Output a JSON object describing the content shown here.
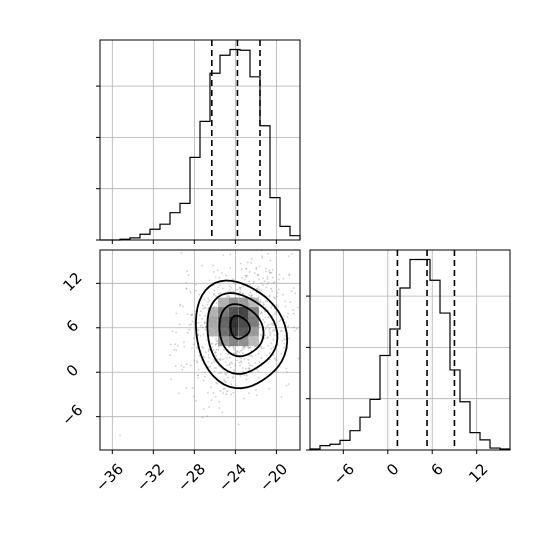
{
  "chart_data": [
    {
      "type": "histogram",
      "panel": "top-left marginal",
      "x_range": [
        -37.2,
        -17.7
      ],
      "x_ticks": [
        -36,
        -32,
        -28,
        -24,
        -20
      ],
      "bin_edges": [
        -37.2,
        -36.225,
        -35.25,
        -34.275,
        -33.3,
        -32.325,
        -31.35,
        -30.375,
        -29.4,
        -28.425,
        -27.45,
        -26.475,
        -25.5,
        -24.525,
        -23.55,
        -22.575,
        -21.6,
        -20.625,
        -19.65,
        -18.675,
        -17.7
      ],
      "counts": [
        0,
        0,
        1,
        3,
        8,
        15,
        22,
        38,
        51,
        115,
        165,
        232,
        257,
        265,
        264,
        227,
        159,
        59,
        19,
        6
      ],
      "quantiles": [
        -26.3,
        -23.8,
        -21.6
      ],
      "grid": true
    },
    {
      "type": "scatter",
      "panel": "bottom-left 2D density",
      "x_range": [
        -37.2,
        -17.7
      ],
      "y_range": [
        -10.5,
        16.5
      ],
      "x_ticks": [
        -36,
        -32,
        -28,
        -24,
        -20
      ],
      "y_ticks": [
        -6,
        0,
        6,
        12
      ],
      "x_tick_labels": [
        "−36",
        "−32",
        "−28",
        "−24",
        "−20"
      ],
      "y_tick_labels": [
        "−6",
        "0",
        "6",
        "12"
      ],
      "peak": [
        -23.7,
        6.2
      ],
      "contours": "4 nested density contour levels",
      "grid": true
    },
    {
      "type": "histogram",
      "panel": "bottom-right marginal",
      "x_range": [
        -10.5,
        16.5
      ],
      "x_ticks": [
        -6,
        0,
        6,
        12
      ],
      "x_tick_labels": [
        "−6",
        "0",
        "6",
        "12"
      ],
      "bin_edges": [
        -10.5,
        -9.15,
        -7.8,
        -6.45,
        -5.1,
        -3.75,
        -2.4,
        -1.05,
        0.3,
        1.65,
        3.0,
        4.35,
        5.7,
        7.05,
        8.4,
        9.75,
        11.1,
        12.45,
        13.8,
        15.15,
        16.5
      ],
      "counts": [
        2,
        9,
        12,
        20,
        40,
        68,
        105,
        196,
        251,
        336,
        395,
        395,
        352,
        284,
        166,
        100,
        36,
        21,
        4,
        2
      ],
      "quantiles": [
        1.3,
        5.3,
        9.0
      ],
      "grid": true
    }
  ]
}
